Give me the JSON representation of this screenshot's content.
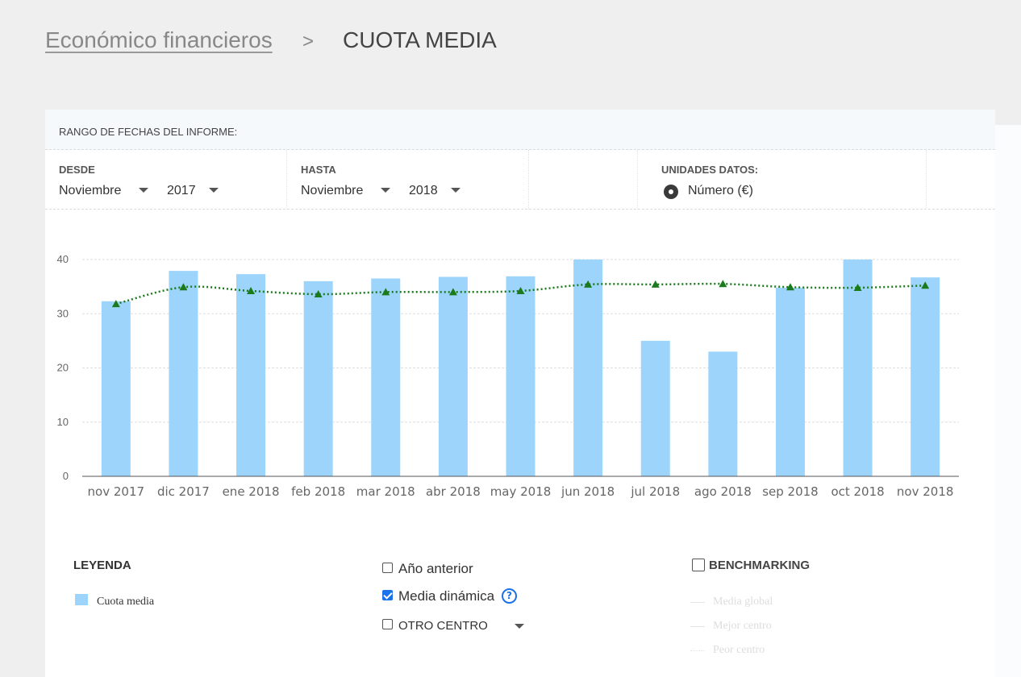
{
  "breadcrumb": {
    "parent": "Económico financieros",
    "separator": ">",
    "current": "CUOTA MEDIA"
  },
  "range_title": "RANGO DE FECHAS DEL INFORME:",
  "desde": {
    "label": "DESDE",
    "month": "Noviembre",
    "year": "2017"
  },
  "hasta": {
    "label": "HASTA",
    "month": "Noviembre",
    "year": "2018"
  },
  "unidades": {
    "label": "UNIDADES DATOS:",
    "option": "Número (€)"
  },
  "chart_data": {
    "type": "bar",
    "categories": [
      "nov 2017",
      "dic 2017",
      "ene 2018",
      "feb 2018",
      "mar 2018",
      "abr 2018",
      "may 2018",
      "jun 2018",
      "jul 2018",
      "ago 2018",
      "sep 2018",
      "oct 2018",
      "nov 2018"
    ],
    "series": [
      {
        "name": "Cuota media",
        "type": "bar",
        "color": "#9dd4fc",
        "values": [
          32.3,
          37.9,
          37.3,
          36.0,
          36.5,
          36.8,
          36.9,
          40.0,
          25.0,
          23.0,
          34.8,
          40.0,
          36.7
        ]
      },
      {
        "name": "Media dinámica",
        "type": "line",
        "color": "#1b7a1b",
        "line_style": "dotted",
        "marker": "triangle",
        "values": [
          31.8,
          34.9,
          34.2,
          33.6,
          34.0,
          34.0,
          34.2,
          35.4,
          35.4,
          35.5,
          34.9,
          34.8,
          35.2
        ]
      }
    ],
    "yticks": [
      0,
      10,
      20,
      30,
      40
    ],
    "ylim": [
      0,
      40
    ],
    "grid": true
  },
  "legend": {
    "title": "LEYENDA",
    "item": "Cuota media"
  },
  "options": {
    "anio_anterior": {
      "label": "Año anterior",
      "checked": false
    },
    "media_dinamica": {
      "label": "Media dinámica",
      "checked": true,
      "help": "?"
    },
    "otro_centro": {
      "label": "OTRO CENTRO",
      "checked": false
    }
  },
  "benchmarking": {
    "label": "BENCHMARKING",
    "checked": false,
    "items": [
      "Media global",
      "Mejor centro",
      "Peor centro"
    ]
  }
}
